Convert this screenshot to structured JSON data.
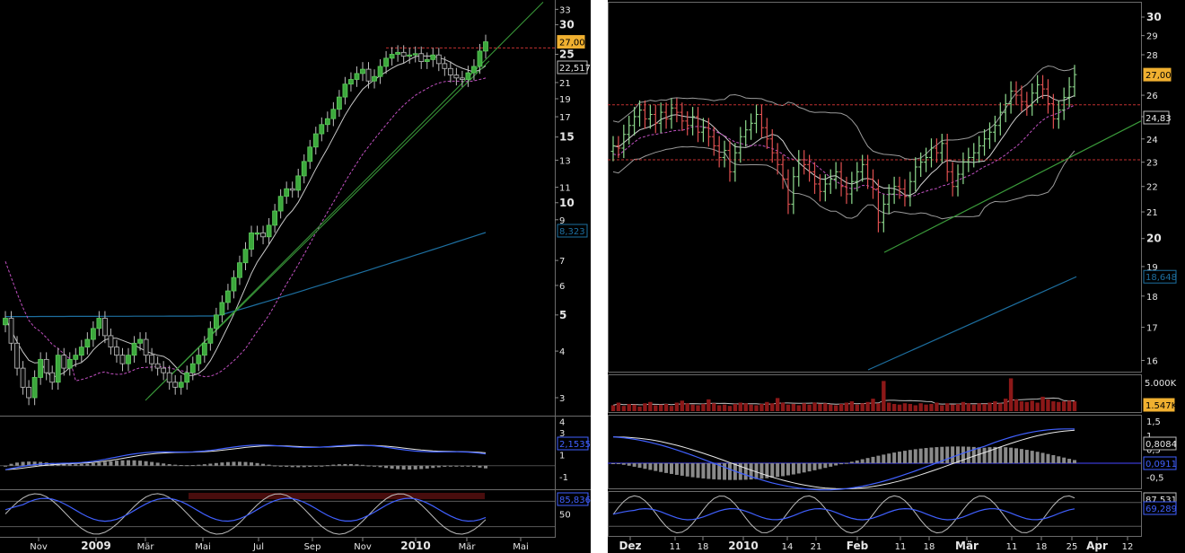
{
  "left_chart": {
    "chart_data": {
      "type": "candlestick",
      "scale": "log",
      "x_tick_labels": [
        "Nov",
        "2009",
        "Mär",
        "Mai",
        "Jul",
        "Sep",
        "Nov",
        "2010",
        "Mär",
        "Mai"
      ],
      "x_tick_bold": [
        false,
        true,
        false,
        false,
        false,
        false,
        false,
        true,
        false,
        false
      ],
      "y_tick_labels": [
        33,
        30,
        25,
        21,
        19,
        17,
        15,
        13,
        11,
        10,
        9,
        7,
        6,
        5,
        4,
        3
      ],
      "y_bold": [
        30,
        25,
        15,
        10,
        5
      ],
      "ylim": [
        2.7,
        34
      ],
      "last_price_label": "27,00",
      "ma_label": "22,517",
      "long_ma_label": "8,323",
      "resistance_level": 26.0,
      "closes": [
        4.9,
        4.2,
        3.6,
        3.2,
        3.0,
        3.4,
        3.8,
        3.5,
        3.3,
        3.9,
        3.6,
        3.8,
        3.9,
        4.1,
        4.3,
        4.6,
        4.9,
        4.4,
        4.1,
        3.9,
        3.7,
        3.9,
        4.2,
        4.3,
        3.9,
        3.7,
        3.6,
        3.5,
        3.3,
        3.2,
        3.3,
        3.5,
        3.7,
        3.9,
        4.2,
        4.6,
        5.0,
        5.4,
        5.8,
        6.3,
        6.9,
        7.5,
        8.3,
        8.3,
        8.1,
        8.7,
        9.5,
        10.4,
        10.9,
        10.8,
        11.8,
        12.9,
        14.1,
        15.3,
        16.2,
        16.8,
        17.8,
        19.2,
        20.8,
        21.4,
        22.2,
        22.8,
        21.2,
        21.8,
        23.2,
        24.4,
        25.0,
        25.3,
        24.7,
        24.9,
        25.1,
        23.9,
        24.2,
        24.9,
        23.6,
        22.9,
        22.0,
        21.6,
        21.4,
        22.3,
        23.2,
        25.5,
        27.0
      ],
      "macd_label": "2,1535",
      "macd_y_ticks": [
        "4",
        "3",
        "1",
        "-1"
      ],
      "stoch_label": "85,836",
      "stoch_y_ticks": [
        "50"
      ]
    }
  },
  "right_chart": {
    "chart_data": {
      "type": "ohlc",
      "scale": "log",
      "x_tick_labels": [
        "Dez",
        "11",
        "18",
        "2010",
        "14",
        "21",
        "Feb",
        "11",
        "18",
        "Mär",
        "11",
        "18",
        "25",
        "Apr",
        "12"
      ],
      "x_tick_bold": [
        true,
        false,
        false,
        true,
        false,
        false,
        true,
        false,
        false,
        true,
        false,
        false,
        false,
        true,
        false
      ],
      "y_tick_labels": [
        30,
        29,
        28,
        26,
        25,
        24,
        23,
        22,
        21,
        20,
        19,
        18,
        17,
        16
      ],
      "y_bold": [
        30,
        25,
        20
      ],
      "ylim": [
        15.7,
        30.8
      ],
      "last_price_label": "27,00",
      "ma_label": "24,83",
      "long_ma_label": "18,648",
      "resistance_level": 25.55,
      "support_level": 23.1,
      "closes": [
        23.7,
        23.6,
        24.2,
        24.6,
        25.0,
        25.3,
        24.9,
        25.1,
        24.7,
        25.2,
        24.9,
        25.4,
        25.2,
        24.8,
        24.6,
        25.0,
        24.3,
        24.5,
        24.1,
        23.7,
        23.2,
        23.5,
        22.6,
        23.4,
        24.1,
        24.4,
        24.7,
        25.1,
        24.5,
        24.0,
        23.4,
        22.9,
        22.3,
        21.3,
        22.4,
        23.1,
        22.9,
        22.6,
        22.1,
        21.8,
        22.1,
        22.3,
        22.6,
        22.0,
        21.7,
        22.2,
        22.6,
        22.9,
        22.3,
        21.9,
        20.6,
        21.3,
        21.7,
        22.0,
        21.9,
        21.6,
        22.2,
        22.8,
        23.0,
        23.2,
        23.6,
        23.4,
        23.8,
        22.6,
        22.0,
        22.5,
        23.0,
        23.2,
        23.4,
        23.7,
        24.0,
        24.3,
        24.6,
        25.2,
        25.6,
        26.2,
        26.0,
        25.7,
        25.5,
        26.1,
        26.5,
        26.3,
        25.6,
        24.9,
        25.3,
        25.9,
        26.4,
        27.0
      ],
      "volume_labels": [
        "5.000K",
        "1.547K"
      ],
      "volume_values": [
        0.9,
        1.3,
        0.8,
        1.1,
        1.0,
        0.7,
        1.2,
        1.4,
        0.9,
        1.0,
        1.1,
        0.8,
        1.3,
        1.6,
        1.2,
        1.0,
        0.9,
        1.1,
        1.8,
        1.2,
        0.9,
        1.0,
        0.8,
        1.1,
        1.3,
        1.2,
        1.0,
        0.9,
        1.1,
        1.4,
        1.2,
        2.0,
        1.3,
        1.0,
        1.1,
        0.9,
        1.2,
        1.0,
        1.3,
        1.1,
        1.2,
        1.0,
        0.9,
        1.1,
        1.3,
        1.5,
        1.0,
        1.2,
        1.4,
        1.9,
        1.2,
        4.6,
        1.3,
        1.1,
        1.0,
        1.2,
        1.1,
        0.9,
        1.2,
        1.0,
        1.1,
        1.3,
        0.9,
        1.2,
        1.0,
        1.1,
        1.4,
        1.2,
        1.0,
        1.2,
        1.1,
        1.3,
        1.5,
        1.2,
        1.9,
        5.0,
        1.8,
        1.5,
        1.4,
        1.6,
        1.3,
        2.2,
        1.8,
        1.5,
        1.4,
        1.5,
        1.6,
        1.5
      ],
      "macd_label_1": "0,8084",
      "macd_label_2": "0,0911",
      "macd_y_ticks": [
        "1,5",
        "1",
        "0,5",
        "-0,5"
      ],
      "stoch_label_1": "87,531",
      "stoch_label_2": "69,289"
    }
  },
  "colors": {
    "background": "#000000",
    "up_candle": "#3ca83c",
    "down_candle": "#c03838",
    "up_bar": "#8fdc8f",
    "down_bar": "#e05050",
    "neutral_candle": "#bfbfbf",
    "ma_short": "#c8c8c8",
    "ma_mid": "#c050c0",
    "ma_long": "#1d6fa0",
    "trendline": "#3a9a3a",
    "resistance": "#c03030",
    "macd": "#4060ff",
    "signal": "#e8e8e8",
    "histogram": "#8a8a8a",
    "price_tag": "#f0b030",
    "volume": "#8c1818"
  }
}
